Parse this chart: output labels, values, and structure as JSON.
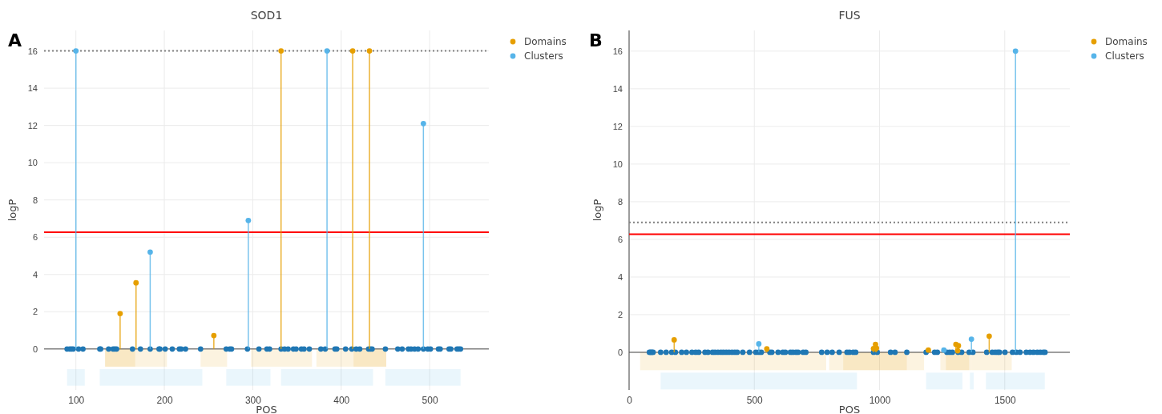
{
  "chart_data": [
    {
      "type": "lollipop",
      "title": "SOD1",
      "xlabel": "POS",
      "ylabel": "logP",
      "annotations": [
        "A"
      ],
      "xlim": [
        64,
        567
      ],
      "ylim": [
        -2.2,
        17.1
      ],
      "xticks": [
        100,
        200,
        300,
        400,
        500
      ],
      "yticks": [
        0,
        2,
        4,
        6,
        8,
        10,
        12,
        14,
        16
      ],
      "grid": true,
      "legend": "top right",
      "marker": "circle",
      "series": [
        {
          "color": "#1f77b4",
          "x": [
            90,
            93,
            95,
            97,
            103,
            108,
            127,
            128,
            137,
            142,
            144,
            146,
            164,
            173,
            184,
            194,
            195,
            201,
            209,
            217,
            219,
            224,
            241,
            270,
            274,
            276,
            294,
            307,
            316,
            319,
            332,
            336,
            340,
            346,
            349,
            355,
            358,
            364,
            377,
            382,
            393,
            395,
            405,
            412,
            417,
            421,
            431,
            433,
            435,
            450,
            464,
            469,
            476,
            479,
            483,
            487,
            493,
            498,
            501,
            510,
            512,
            522,
            524,
            531,
            533,
            535
          ],
          "values": [
            0,
            0,
            0,
            0,
            0,
            0,
            0,
            0,
            0,
            0,
            0,
            0,
            0,
            0,
            0,
            0,
            0,
            0,
            0,
            0,
            0,
            0,
            0,
            0,
            0,
            0,
            0,
            0,
            0,
            0,
            0,
            0,
            0,
            0,
            0,
            0,
            0,
            0,
            0,
            0,
            0,
            0,
            0,
            0,
            0,
            0,
            0,
            0,
            0,
            0,
            0,
            0,
            0,
            0,
            0,
            0,
            0,
            0,
            0,
            0,
            0,
            0,
            0,
            0,
            0,
            0
          ]
        },
        {
          "name": "Domains",
          "color": "#e69f00",
          "x": [
            150,
            168,
            256,
            332,
            413,
            432
          ],
          "values": [
            1.9,
            3.55,
            0.72,
            16,
            16,
            16
          ]
        },
        {
          "name": "Clusters",
          "color": "#56b4e9",
          "x": [
            100,
            184,
            295,
            384,
            493
          ],
          "values": [
            16,
            5.2,
            6.9,
            16,
            12.1
          ]
        }
      ],
      "ref_lines": [
        {
          "axis": "y",
          "value": 16,
          "color": "#808080",
          "line_style": "dotted"
        },
        {
          "axis": "y",
          "value": 6.27,
          "color": "#ff0000",
          "line_style": "solid"
        }
      ],
      "bands": [
        {
          "axis": "x",
          "from": 133,
          "to": 203,
          "color": "#e69f00"
        },
        {
          "axis": "x",
          "from": 133,
          "to": 167,
          "color": "#e69f00"
        },
        {
          "axis": "x",
          "from": 241,
          "to": 271,
          "color": "#e69f00"
        },
        {
          "axis": "x",
          "from": 298,
          "to": 367,
          "color": "#e69f00"
        },
        {
          "axis": "x",
          "from": 372,
          "to": 451,
          "color": "#e69f00"
        },
        {
          "axis": "x",
          "from": 414,
          "to": 451,
          "color": "#e69f00"
        },
        {
          "axis": "x",
          "from": 90,
          "to": 110,
          "color": "#56b4e9"
        },
        {
          "axis": "x",
          "from": 127,
          "to": 243,
          "color": "#56b4e9"
        },
        {
          "axis": "x",
          "from": 270,
          "to": 320,
          "color": "#56b4e9"
        },
        {
          "axis": "x",
          "from": 332,
          "to": 436,
          "color": "#56b4e9"
        },
        {
          "axis": "x",
          "from": 450,
          "to": 535,
          "color": "#56b4e9"
        }
      ]
    },
    {
      "type": "lollipop",
      "title": "FUS",
      "xlabel": "POS",
      "ylabel": "logP",
      "annotations": [
        "B"
      ],
      "xlim": [
        0,
        1760
      ],
      "ylim": [
        -2,
        17.1
      ],
      "xticks": [
        0,
        500,
        1000,
        1500
      ],
      "yticks": [
        0,
        2,
        4,
        6,
        8,
        10,
        12,
        14,
        16
      ],
      "grid": true,
      "legend": "top right",
      "marker": "circle",
      "series": [
        {
          "color": "#1f77b4",
          "x": [
            81,
            86,
            91,
            96,
            126,
            148,
            170,
            185,
            210,
            229,
            251,
            266,
            278,
            303,
            315,
            333,
            343,
            355,
            367,
            377,
            388,
            399,
            411,
            422,
            432,
            454,
            481,
            506,
            518,
            528,
            562,
            570,
            595,
            614,
            624,
            644,
            654,
            666,
            675,
            695,
            706,
            769,
            791,
            811,
            839,
            870,
            880,
            895,
            905,
            976,
            991,
            1044,
            1062,
            1109,
            1186,
            1220,
            1231,
            1269,
            1280,
            1291,
            1314,
            1328,
            1358,
            1373,
            1428,
            1450,
            1462,
            1472,
            1479,
            1501,
            1531,
            1546,
            1561,
            1586,
            1601,
            1615,
            1630,
            1642,
            1654,
            1661
          ],
          "values": [
            0,
            0,
            0,
            0,
            0,
            0,
            0,
            0,
            0,
            0,
            0,
            0,
            0,
            0,
            0,
            0,
            0,
            0,
            0,
            0,
            0,
            0,
            0,
            0,
            0,
            0,
            0,
            0,
            0,
            0,
            0,
            0,
            0,
            0,
            0,
            0,
            0,
            0,
            0,
            0,
            0,
            0,
            0,
            0,
            0,
            0,
            0,
            0,
            0,
            0,
            0,
            0,
            0,
            0,
            0,
            0,
            0,
            0,
            0,
            0,
            0,
            0,
            0,
            0,
            0,
            0,
            0,
            0,
            0,
            0,
            0,
            0,
            0,
            0,
            0,
            0,
            0,
            0,
            0,
            0
          ]
        },
        {
          "name": "Domains",
          "color": "#e69f00",
          "x": [
            180,
            550,
            976,
            984,
            988,
            1195,
            1305,
            1312,
            1315,
            1438
          ],
          "values": [
            0.66,
            0.18,
            0.2,
            0.42,
            0.22,
            0.12,
            0.42,
            0.08,
            0.35,
            0.86
          ]
        },
        {
          "name": "Clusters",
          "color": "#56b4e9",
          "x": [
            518,
            1257,
            1367,
            1543
          ],
          "values": [
            0.45,
            0.12,
            0.7,
            16
          ]
        }
      ],
      "ref_lines": [
        {
          "axis": "y",
          "value": 6.9,
          "color": "#808080",
          "line_style": "dotted"
        },
        {
          "axis": "y",
          "value": 6.27,
          "color": "#ff0000",
          "line_style": "solid"
        }
      ],
      "bands": [
        {
          "axis": "x",
          "from": 44,
          "to": 787,
          "color": "#e69f00"
        },
        {
          "axis": "x",
          "from": 799,
          "to": 1178,
          "color": "#e69f00"
        },
        {
          "axis": "x",
          "from": 855,
          "to": 1109,
          "color": "#e69f00"
        },
        {
          "axis": "x",
          "from": 1243,
          "to": 1368,
          "color": "#e69f00"
        },
        {
          "axis": "x",
          "from": 1265,
          "to": 1358,
          "color": "#e69f00"
        },
        {
          "axis": "x",
          "from": 1368,
          "to": 1528,
          "color": "#e69f00"
        },
        {
          "axis": "x",
          "from": 126,
          "to": 910,
          "color": "#56b4e9"
        },
        {
          "axis": "x",
          "from": 1186,
          "to": 1331,
          "color": "#56b4e9"
        },
        {
          "axis": "x",
          "from": 1361,
          "to": 1376,
          "color": "#56b4e9"
        },
        {
          "axis": "x",
          "from": 1425,
          "to": 1660,
          "color": "#56b4e9"
        }
      ]
    }
  ]
}
